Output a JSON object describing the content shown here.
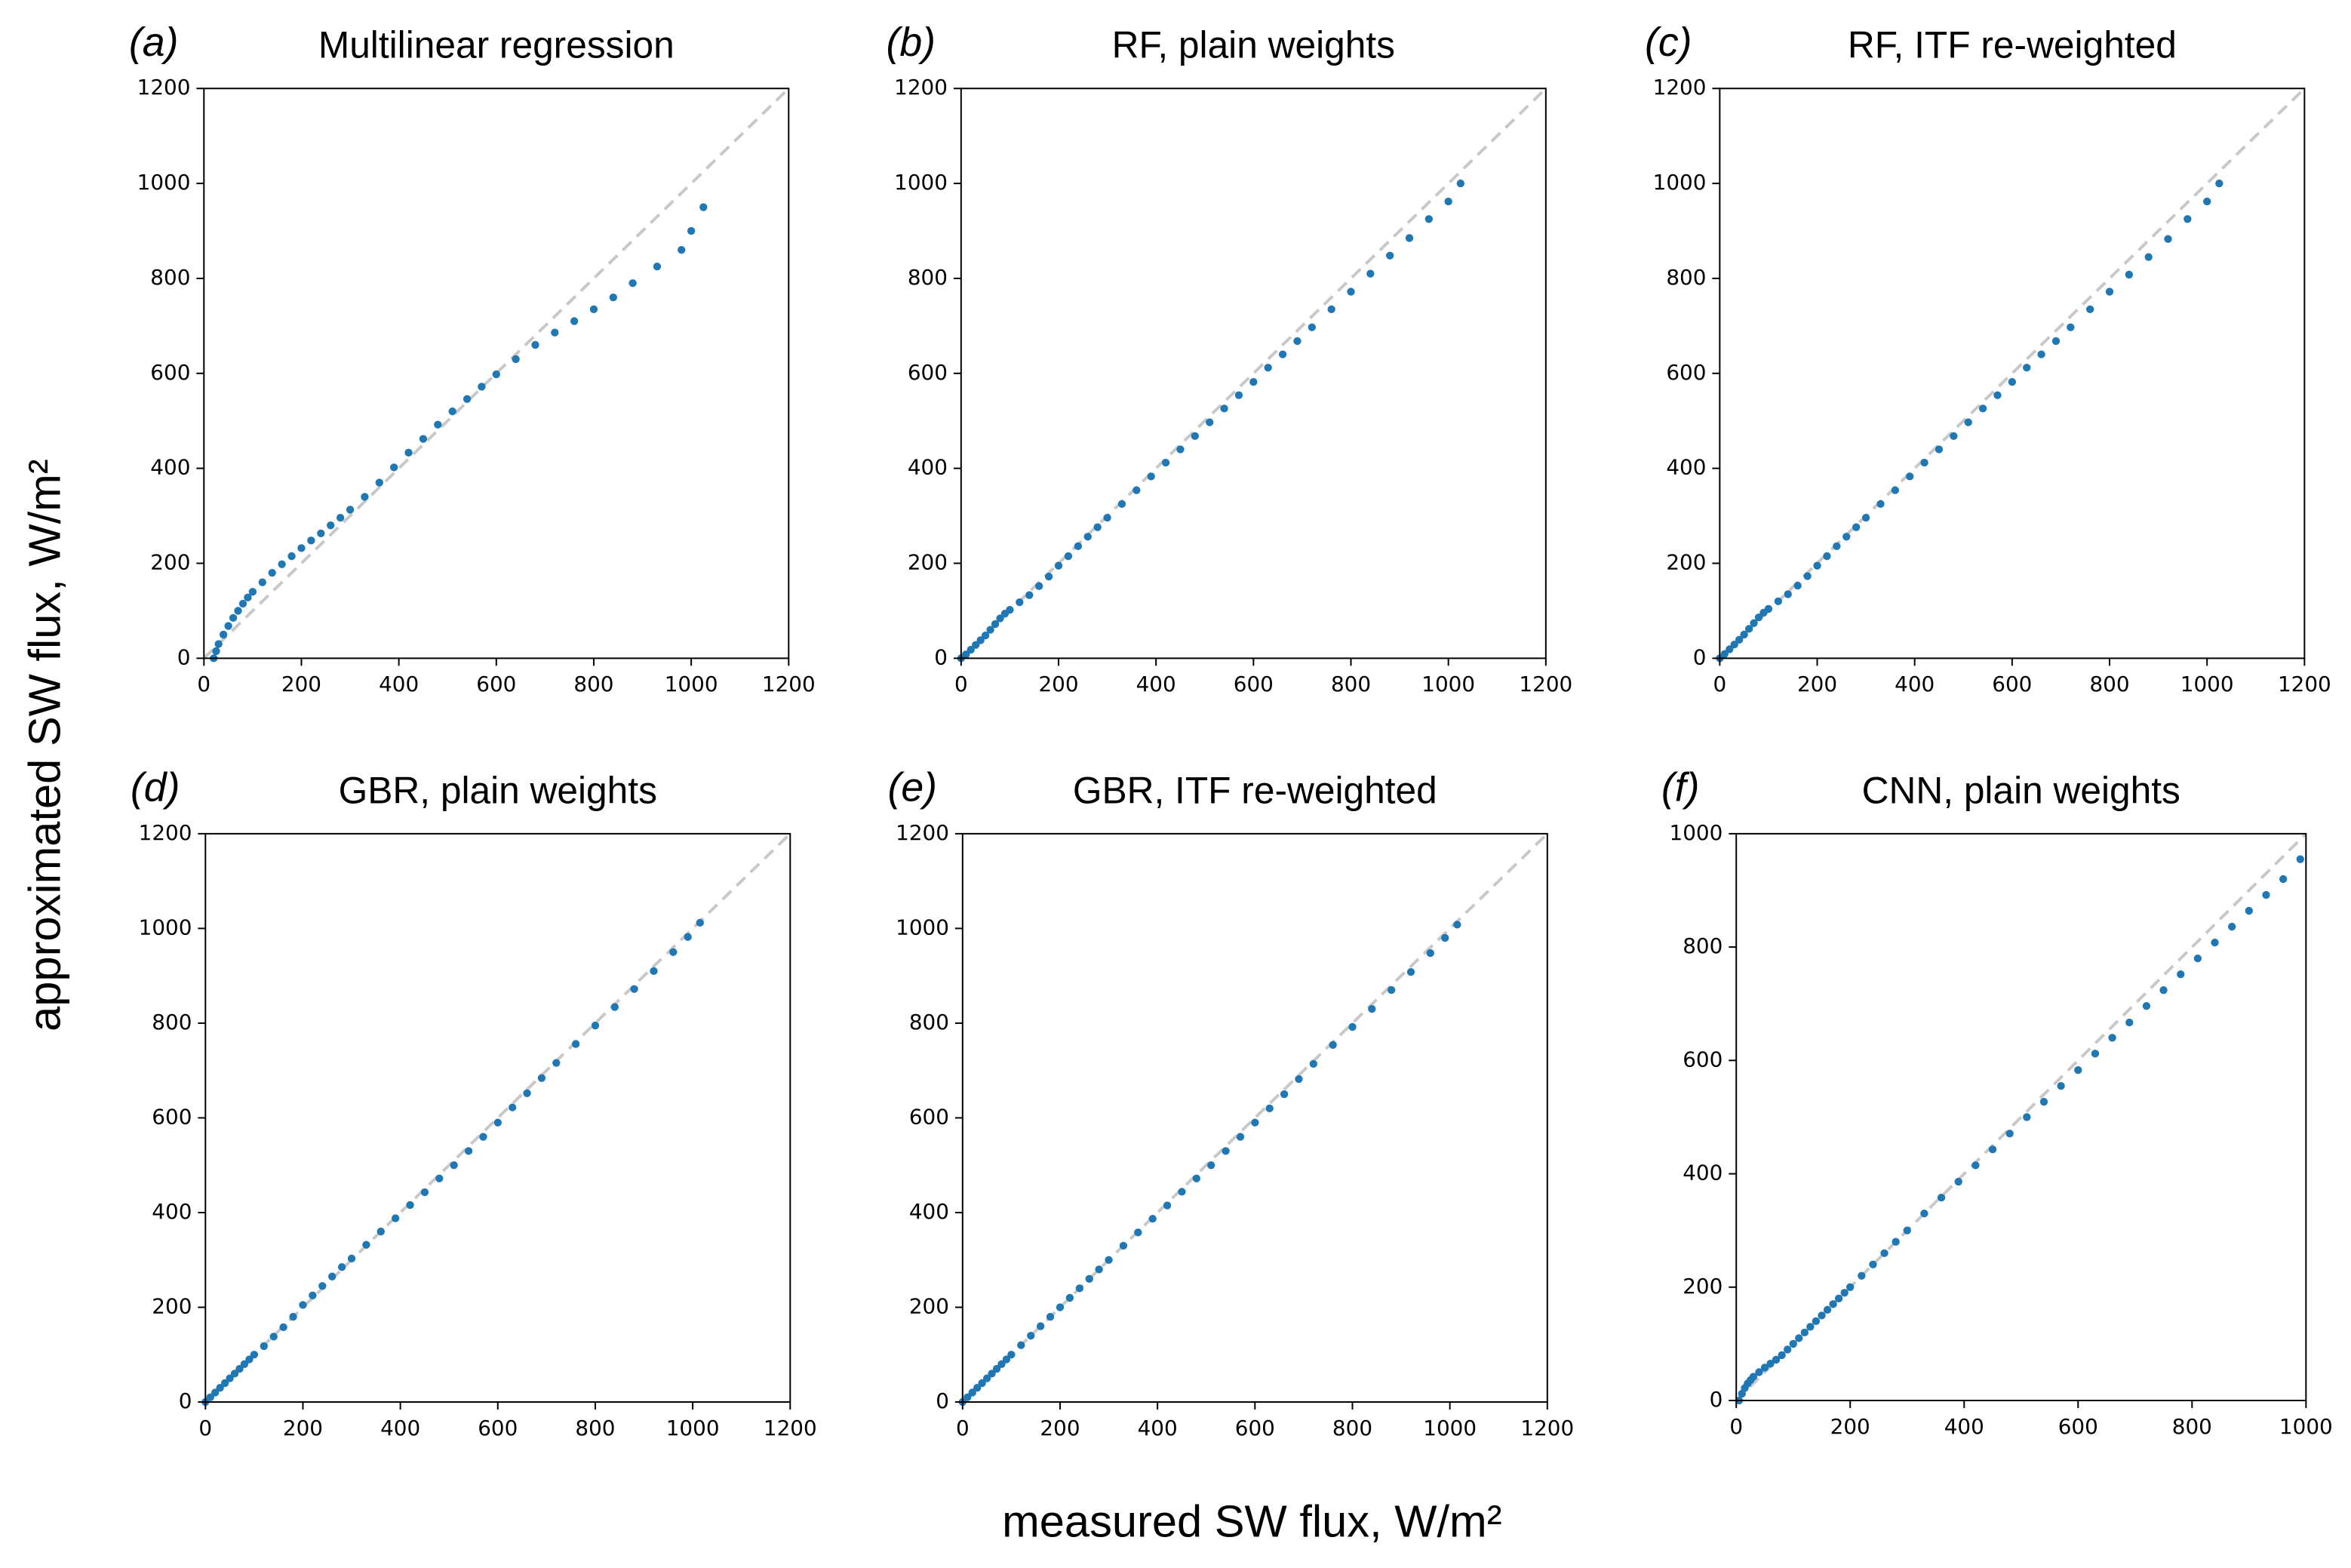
{
  "xlabel": "measured SW flux, W/m²",
  "ylabel": "approximated SW flux, W/m²",
  "chart_data": [
    {
      "type": "scatter",
      "panel_label": "(a)",
      "title": "Multilinear regression",
      "color": "#1f77b4",
      "xlim": [
        0,
        1200
      ],
      "ylim": [
        0,
        1200
      ],
      "xticks": [
        0,
        200,
        400,
        600,
        800,
        1000,
        1200
      ],
      "yticks": [
        0,
        200,
        400,
        600,
        800,
        1000,
        1200
      ],
      "x": [
        20,
        25,
        30,
        40,
        50,
        60,
        70,
        80,
        90,
        100,
        120,
        140,
        160,
        180,
        200,
        220,
        240,
        260,
        280,
        300,
        330,
        360,
        390,
        420,
        450,
        480,
        510,
        540,
        570,
        600,
        640,
        680,
        720,
        760,
        800,
        840,
        880,
        930,
        980,
        1000,
        1025
      ],
      "y": [
        0,
        15,
        30,
        50,
        68,
        85,
        100,
        115,
        128,
        140,
        160,
        180,
        198,
        215,
        232,
        248,
        263,
        280,
        296,
        313,
        340,
        370,
        402,
        433,
        462,
        492,
        520,
        546,
        572,
        598,
        630,
        660,
        686,
        710,
        735,
        760,
        790,
        825,
        860,
        900,
        950
      ]
    },
    {
      "type": "scatter",
      "panel_label": "(b)",
      "title": "RF, plain weights",
      "color": "#1f77b4",
      "xlim": [
        0,
        1200
      ],
      "ylim": [
        0,
        1200
      ],
      "xticks": [
        0,
        200,
        400,
        600,
        800,
        1000,
        1200
      ],
      "yticks": [
        0,
        200,
        400,
        600,
        800,
        1000,
        1200
      ],
      "x": [
        0,
        10,
        20,
        30,
        40,
        50,
        60,
        70,
        80,
        90,
        100,
        120,
        140,
        160,
        180,
        200,
        220,
        240,
        260,
        280,
        300,
        330,
        360,
        390,
        420,
        450,
        480,
        510,
        540,
        570,
        600,
        630,
        660,
        690,
        720,
        760,
        800,
        840,
        880,
        920,
        960,
        1000,
        1025
      ],
      "y": [
        0,
        8,
        18,
        28,
        38,
        48,
        60,
        72,
        84,
        94,
        102,
        118,
        133,
        152,
        172,
        195,
        215,
        236,
        256,
        276,
        296,
        325,
        354,
        383,
        412,
        440,
        468,
        497,
        526,
        554,
        582,
        612,
        640,
        668,
        697,
        735,
        772,
        810,
        848,
        885,
        925,
        962,
        1000
      ]
    },
    {
      "type": "scatter",
      "panel_label": "(c)",
      "title": "RF, ITF re-weighted",
      "color": "#1f77b4",
      "xlim": [
        0,
        1200
      ],
      "ylim": [
        0,
        1200
      ],
      "xticks": [
        0,
        200,
        400,
        600,
        800,
        1000,
        1200
      ],
      "yticks": [
        0,
        200,
        400,
        600,
        800,
        1000,
        1200
      ],
      "x": [
        0,
        10,
        20,
        30,
        40,
        50,
        60,
        70,
        80,
        90,
        100,
        120,
        140,
        160,
        180,
        200,
        220,
        240,
        260,
        280,
        300,
        330,
        360,
        390,
        420,
        450,
        480,
        510,
        540,
        570,
        600,
        630,
        660,
        690,
        720,
        760,
        800,
        840,
        880,
        920,
        960,
        1000,
        1025
      ],
      "y": [
        0,
        9,
        19,
        29,
        39,
        50,
        62,
        74,
        86,
        96,
        104,
        120,
        135,
        153,
        173,
        195,
        215,
        236,
        256,
        276,
        296,
        325,
        354,
        383,
        412,
        440,
        468,
        497,
        526,
        554,
        582,
        612,
        640,
        668,
        697,
        735,
        772,
        808,
        845,
        883,
        925,
        962,
        1000
      ]
    },
    {
      "type": "scatter",
      "panel_label": "(d)",
      "title": "GBR, plain weights",
      "color": "#1f77b4",
      "xlim": [
        0,
        1200
      ],
      "ylim": [
        0,
        1200
      ],
      "xticks": [
        0,
        200,
        400,
        600,
        800,
        1000,
        1200
      ],
      "yticks": [
        0,
        200,
        400,
        600,
        800,
        1000,
        1200
      ],
      "x": [
        0,
        10,
        20,
        30,
        40,
        50,
        60,
        70,
        80,
        90,
        100,
        120,
        140,
        160,
        180,
        200,
        220,
        240,
        260,
        280,
        300,
        330,
        360,
        390,
        420,
        450,
        480,
        510,
        540,
        570,
        600,
        630,
        660,
        690,
        720,
        760,
        800,
        840,
        880,
        920,
        960,
        990,
        1015
      ],
      "y": [
        0,
        10,
        20,
        30,
        40,
        50,
        60,
        70,
        80,
        90,
        100,
        118,
        138,
        158,
        180,
        205,
        225,
        245,
        265,
        285,
        303,
        332,
        360,
        388,
        416,
        443,
        472,
        500,
        530,
        560,
        590,
        622,
        652,
        684,
        716,
        756,
        795,
        834,
        872,
        910,
        950,
        982,
        1012
      ]
    },
    {
      "type": "scatter",
      "panel_label": "(e)",
      "title": "GBR, ITF re-weighted",
      "color": "#1f77b4",
      "xlim": [
        0,
        1200
      ],
      "ylim": [
        0,
        1200
      ],
      "xticks": [
        0,
        200,
        400,
        600,
        800,
        1000,
        1200
      ],
      "yticks": [
        0,
        200,
        400,
        600,
        800,
        1000,
        1200
      ],
      "x": [
        0,
        10,
        20,
        30,
        40,
        50,
        60,
        70,
        80,
        90,
        100,
        120,
        140,
        160,
        180,
        200,
        220,
        240,
        260,
        280,
        300,
        330,
        360,
        390,
        420,
        450,
        480,
        510,
        540,
        570,
        600,
        630,
        660,
        690,
        720,
        760,
        800,
        840,
        880,
        920,
        960,
        990,
        1015
      ],
      "y": [
        0,
        10,
        20,
        30,
        40,
        50,
        60,
        70,
        80,
        90,
        100,
        120,
        140,
        160,
        180,
        200,
        220,
        240,
        260,
        280,
        300,
        330,
        358,
        387,
        415,
        444,
        472,
        500,
        530,
        560,
        590,
        620,
        650,
        682,
        714,
        754,
        792,
        830,
        870,
        908,
        948,
        980,
        1008
      ]
    },
    {
      "type": "scatter",
      "panel_label": "(f)",
      "title": "CNN, plain weights",
      "color": "#1f77b4",
      "xlim": [
        0,
        1000
      ],
      "ylim": [
        0,
        1000
      ],
      "xticks": [
        0,
        200,
        400,
        600,
        800,
        1000
      ],
      "yticks": [
        0,
        200,
        400,
        600,
        800,
        1000
      ],
      "x": [
        5,
        10,
        15,
        20,
        25,
        30,
        40,
        50,
        60,
        70,
        80,
        90,
        100,
        110,
        120,
        130,
        140,
        150,
        160,
        170,
        180,
        190,
        200,
        220,
        240,
        260,
        280,
        300,
        330,
        360,
        390,
        420,
        450,
        480,
        510,
        540,
        570,
        600,
        630,
        660,
        690,
        720,
        750,
        780,
        810,
        840,
        870,
        900,
        930,
        960,
        990
      ],
      "y": [
        0,
        12,
        22,
        30,
        36,
        42,
        50,
        58,
        65,
        72,
        80,
        90,
        100,
        110,
        120,
        130,
        140,
        150,
        160,
        170,
        180,
        190,
        200,
        220,
        240,
        260,
        280,
        300,
        330,
        358,
        386,
        415,
        443,
        471,
        500,
        527,
        555,
        583,
        612,
        640,
        667,
        696,
        724,
        752,
        780,
        808,
        836,
        864,
        892,
        920,
        955
      ]
    }
  ]
}
